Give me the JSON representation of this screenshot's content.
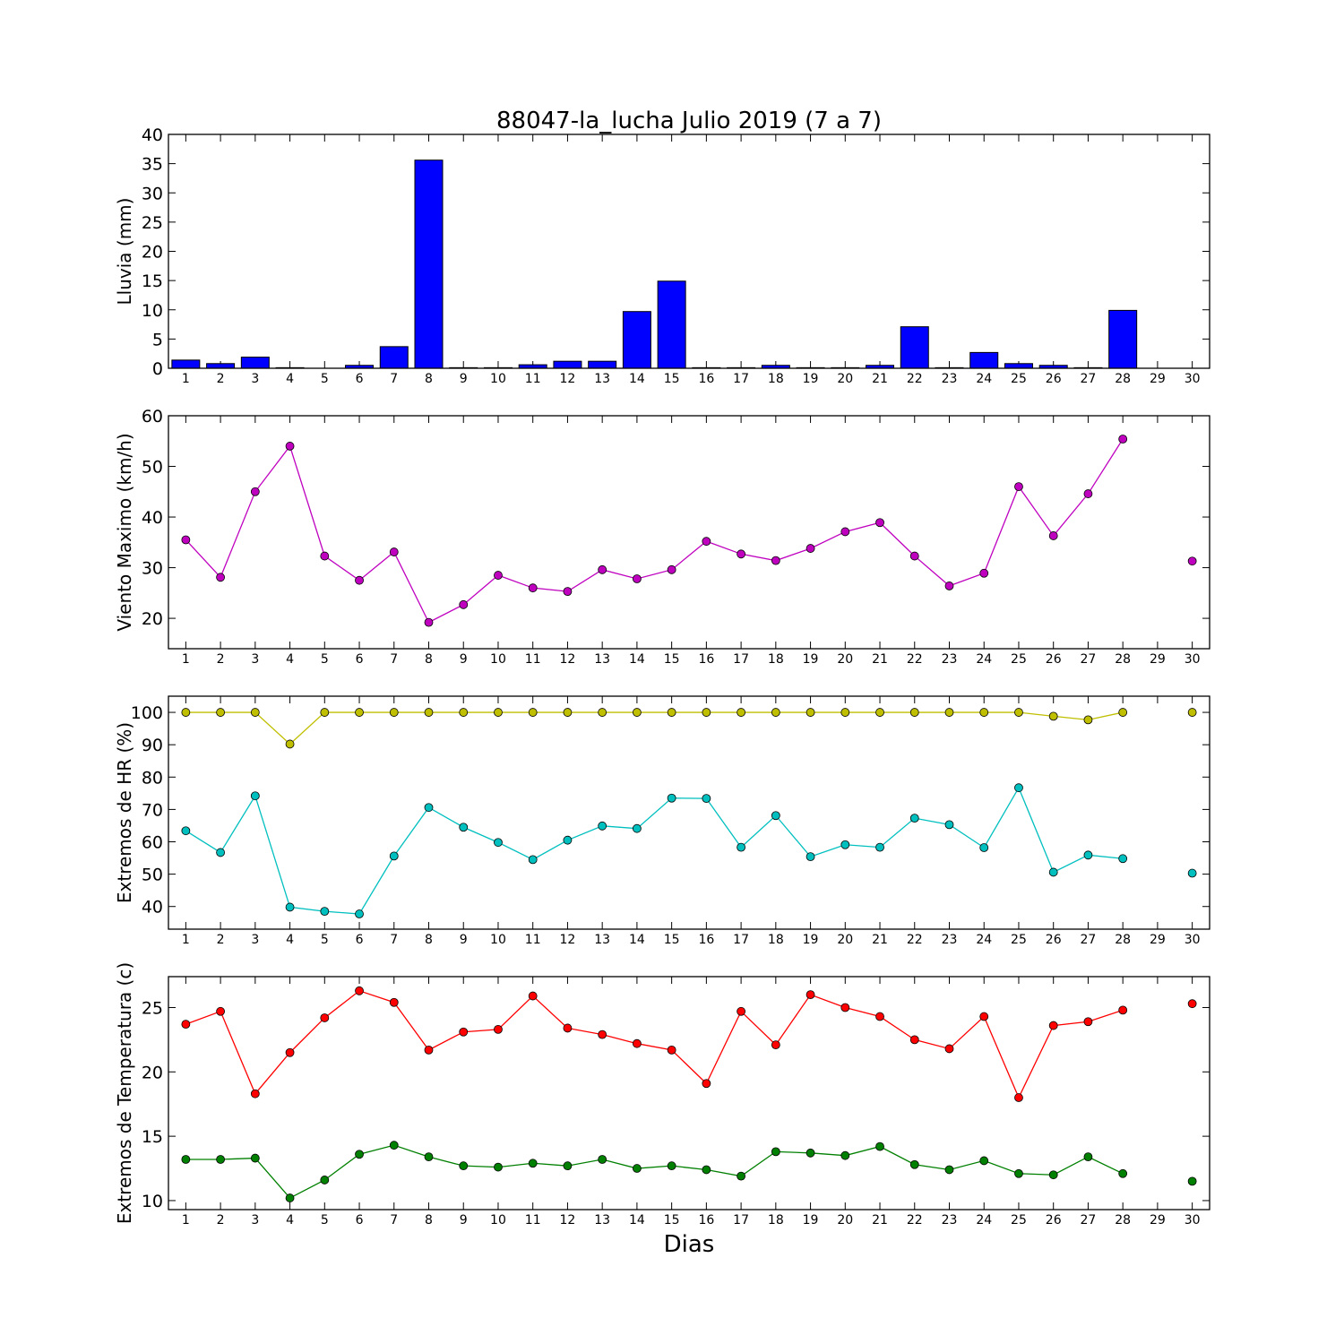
{
  "figure": {
    "title": "88047-la_lucha Julio 2019  (7 a 7)",
    "xlabel": "Dias"
  },
  "chart_data": [
    {
      "type": "bar",
      "ylabel": "Lluvia (mm)",
      "ylim": [
        0,
        40
      ],
      "yticks": [
        0,
        5,
        10,
        15,
        20,
        25,
        30,
        35,
        40
      ],
      "categories": [
        "1",
        "2",
        "3",
        "4",
        "5",
        "6",
        "7",
        "8",
        "9",
        "10",
        "11",
        "12",
        "13",
        "14",
        "15",
        "16",
        "17",
        "18",
        "19",
        "20",
        "21",
        "22",
        "23",
        "24",
        "25",
        "26",
        "27",
        "28",
        "29",
        "30"
      ],
      "series": [
        {
          "color": "#0000ff",
          "values": [
            1.4,
            0.8,
            1.9,
            0.1,
            0,
            0.5,
            3.7,
            35.6,
            0.1,
            0.1,
            0.6,
            1.2,
            1.2,
            9.7,
            14.9,
            0.1,
            0.1,
            0.5,
            0.1,
            0.1,
            0.5,
            7.1,
            0.1,
            2.7,
            0.8,
            0.5,
            0.1,
            9.9,
            0,
            0
          ]
        }
      ]
    },
    {
      "type": "line",
      "ylabel": "Viento Maximo (km/h)",
      "ylim": [
        14,
        60
      ],
      "yticks": [
        20,
        30,
        40,
        50,
        60
      ],
      "x": [
        1,
        2,
        3,
        4,
        5,
        6,
        7,
        8,
        9,
        10,
        11,
        12,
        13,
        14,
        15,
        16,
        17,
        18,
        19,
        20,
        21,
        22,
        23,
        24,
        25,
        26,
        27,
        28,
        29,
        30
      ],
      "xticks": [
        "1",
        "2",
        "3",
        "4",
        "5",
        "6",
        "7",
        "8",
        "9",
        "10",
        "11",
        "12",
        "13",
        "14",
        "15",
        "16",
        "17",
        "18",
        "19",
        "20",
        "21",
        "22",
        "23",
        "24",
        "25",
        "26",
        "27",
        "28",
        "29",
        "30"
      ],
      "series": [
        {
          "color": "#bf00bf",
          "values": [
            35.5,
            28.1,
            45.0,
            54.0,
            32.3,
            27.5,
            33.1,
            19.2,
            22.7,
            28.5,
            26.0,
            25.3,
            29.6,
            27.8,
            29.6,
            35.2,
            32.7,
            31.4,
            33.8,
            37.1,
            38.9,
            32.3,
            26.4,
            28.9,
            46.0,
            36.3,
            44.6,
            55.4,
            null,
            31.3
          ]
        }
      ]
    },
    {
      "type": "line",
      "ylabel": "Extremos de HR (%)",
      "ylim": [
        33,
        105
      ],
      "yticks": [
        40,
        50,
        60,
        70,
        80,
        90,
        100
      ],
      "x": [
        1,
        2,
        3,
        4,
        5,
        6,
        7,
        8,
        9,
        10,
        11,
        12,
        13,
        14,
        15,
        16,
        17,
        18,
        19,
        20,
        21,
        22,
        23,
        24,
        25,
        26,
        27,
        28,
        29,
        30
      ],
      "xticks": [
        "1",
        "2",
        "3",
        "4",
        "5",
        "6",
        "7",
        "8",
        "9",
        "10",
        "11",
        "12",
        "13",
        "14",
        "15",
        "16",
        "17",
        "18",
        "19",
        "20",
        "21",
        "22",
        "23",
        "24",
        "25",
        "26",
        "27",
        "28",
        "29",
        "30"
      ],
      "series": [
        {
          "color": "#bfbf00",
          "values": [
            100,
            100,
            100,
            90.2,
            100,
            100,
            100,
            100,
            100,
            100,
            100,
            100,
            100,
            100,
            100,
            100,
            100,
            100,
            100,
            100,
            100,
            100,
            100,
            100,
            100,
            98.8,
            97.7,
            100,
            null,
            100
          ]
        },
        {
          "color": "#00bfbf",
          "values": [
            63.4,
            56.7,
            74.2,
            39.8,
            38.5,
            37.7,
            55.6,
            70.6,
            64.5,
            59.8,
            54.5,
            60.5,
            64.9,
            64.1,
            73.5,
            73.4,
            58.3,
            68.1,
            55.4,
            59.1,
            58.3,
            67.3,
            65.3,
            58.2,
            76.7,
            50.6,
            55.9,
            54.8,
            null,
            50.3
          ]
        }
      ]
    },
    {
      "type": "line",
      "ylabel": "Extremos de Temperatura (c)",
      "ylim": [
        9.3,
        27.4
      ],
      "yticks": [
        10,
        15,
        20,
        25
      ],
      "x": [
        1,
        2,
        3,
        4,
        5,
        6,
        7,
        8,
        9,
        10,
        11,
        12,
        13,
        14,
        15,
        16,
        17,
        18,
        19,
        20,
        21,
        22,
        23,
        24,
        25,
        26,
        27,
        28,
        29,
        30
      ],
      "xticks": [
        "1",
        "2",
        "3",
        "4",
        "5",
        "6",
        "7",
        "8",
        "9",
        "10",
        "11",
        "12",
        "13",
        "14",
        "15",
        "16",
        "17",
        "18",
        "19",
        "20",
        "21",
        "22",
        "23",
        "24",
        "25",
        "26",
        "27",
        "28",
        "29",
        "30"
      ],
      "series": [
        {
          "color": "#ff0000",
          "values": [
            23.7,
            24.7,
            18.3,
            21.5,
            24.2,
            26.3,
            25.4,
            21.7,
            23.1,
            23.3,
            25.9,
            23.4,
            22.9,
            22.2,
            21.7,
            19.1,
            24.7,
            22.1,
            26.0,
            25.0,
            24.3,
            22.5,
            21.8,
            24.3,
            18.0,
            23.6,
            23.9,
            24.8,
            null,
            25.3
          ]
        },
        {
          "color": "#008000",
          "values": [
            13.2,
            13.2,
            13.3,
            10.2,
            11.6,
            13.6,
            14.3,
            13.4,
            12.7,
            12.6,
            12.9,
            12.7,
            13.2,
            12.5,
            12.7,
            12.4,
            11.9,
            13.8,
            13.7,
            13.5,
            14.2,
            12.8,
            12.4,
            13.1,
            12.1,
            12.0,
            13.4,
            12.1,
            null,
            11.5
          ]
        }
      ]
    }
  ]
}
